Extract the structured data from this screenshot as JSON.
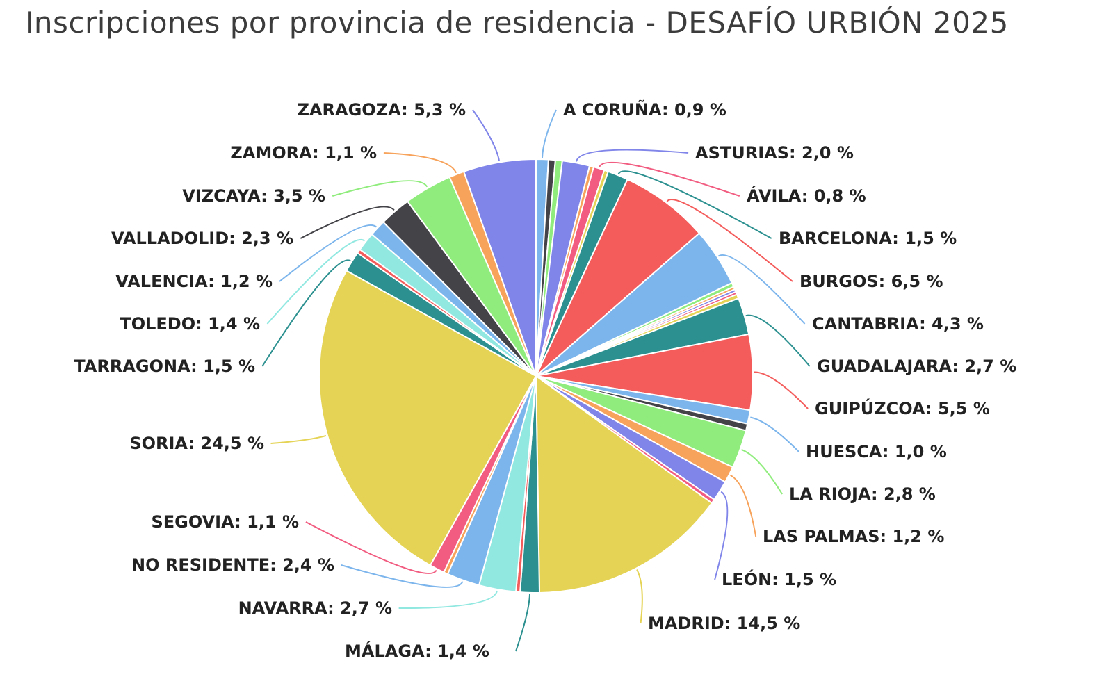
{
  "chart_data": {
    "type": "pie",
    "title": "Inscripciones por provincia de residencia - DESAFÍO URBIÓN 2025",
    "slices": [
      {
        "name": "A CORUÑA",
        "label": "A CORUÑA: 0,9 %",
        "value": 0.9,
        "color": "#7cb5ec"
      },
      {
        "name": "(sin etiqueta)",
        "label": "",
        "value": 0.5,
        "color": "#434348"
      },
      {
        "name": "(sin etiqueta)",
        "label": "",
        "value": 0.5,
        "color": "#90ed7d"
      },
      {
        "name": "ASTURIAS",
        "label": "ASTURIAS: 2,0 %",
        "value": 2.0,
        "color": "#8085e9"
      },
      {
        "name": "(sin etiqueta)",
        "label": "",
        "value": 0.3,
        "color": "#f7a35c"
      },
      {
        "name": "ÁVILA",
        "label": "ÁVILA: 0,8 %",
        "value": 0.8,
        "color": "#f15c80"
      },
      {
        "name": "(sin etiqueta)",
        "label": "",
        "value": 0.3,
        "color": "#e4d354"
      },
      {
        "name": "BARCELONA",
        "label": "BARCELONA: 1,5 %",
        "value": 1.5,
        "color": "#2b908f"
      },
      {
        "name": "BURGOS",
        "label": "BURGOS: 6,5 %",
        "value": 6.5,
        "color": "#f45b5b"
      },
      {
        "name": "CANTABRIA",
        "label": "CANTABRIA: 4,3 %",
        "value": 4.3,
        "color": "#7cb5ec"
      },
      {
        "name": "(sin etiqueta)",
        "label": "",
        "value": 0.3,
        "color": "#90ed7d"
      },
      {
        "name": "(sin etiqueta)",
        "label": "",
        "value": 0.2,
        "color": "#f7a35c"
      },
      {
        "name": "(sin etiqueta)",
        "label": "",
        "value": 0.2,
        "color": "#8085e9"
      },
      {
        "name": "(sin etiqueta)",
        "label": "",
        "value": 0.2,
        "color": "#f15c80"
      },
      {
        "name": "(sin etiqueta)",
        "label": "",
        "value": 0.3,
        "color": "#e4d354"
      },
      {
        "name": "GUADALAJARA",
        "label": "GUADALAJARA: 2,7 %",
        "value": 2.7,
        "color": "#2b908f"
      },
      {
        "name": "GUIPÚZCOA",
        "label": "GUIPÚZCOA: 5,5 %",
        "value": 5.5,
        "color": "#f45b5b"
      },
      {
        "name": "HUESCA",
        "label": "HUESCA: 1,0 %",
        "value": 1.0,
        "color": "#7cb5ec"
      },
      {
        "name": "(sin etiqueta)",
        "label": "",
        "value": 0.5,
        "color": "#434348"
      },
      {
        "name": "LA RIOJA",
        "label": "LA RIOJA: 2,8 %",
        "value": 2.8,
        "color": "#90ed7d"
      },
      {
        "name": "LAS PALMAS",
        "label": "LAS PALMAS: 1,2 %",
        "value": 1.2,
        "color": "#f7a35c"
      },
      {
        "name": "LEÓN",
        "label": "LEÓN: 1,5 %",
        "value": 1.5,
        "color": "#8085e9"
      },
      {
        "name": "(sin etiqueta)",
        "label": "",
        "value": 0.3,
        "color": "#f15c80"
      },
      {
        "name": "MADRID",
        "label": "MADRID: 14,5 %",
        "value": 14.5,
        "color": "#e4d354"
      },
      {
        "name": "MÁLAGA",
        "label": "MÁLAGA: 1,4 %",
        "value": 1.4,
        "color": "#2b908f"
      },
      {
        "name": "(sin etiqueta)",
        "label": "",
        "value": 0.3,
        "color": "#f45b5b"
      },
      {
        "name": "NAVARRA",
        "label": "NAVARRA: 2,7 %",
        "value": 2.7,
        "color": "#91e8e1"
      },
      {
        "name": "NO RESIDENTE",
        "label": "NO RESIDENTE: 2,4 %",
        "value": 2.4,
        "color": "#7cb5ec"
      },
      {
        "name": "(sin etiqueta)",
        "label": "",
        "value": 0.3,
        "color": "#f7a35c"
      },
      {
        "name": "SEGOVIA",
        "label": "SEGOVIA: 1,1 %",
        "value": 1.1,
        "color": "#f15c80"
      },
      {
        "name": "SORIA",
        "label": "SORIA: 24,5 %",
        "value": 24.5,
        "color": "#e4d354"
      },
      {
        "name": "TARRAGONA",
        "label": "TARRAGONA: 1,5 %",
        "value": 1.5,
        "color": "#2b908f"
      },
      {
        "name": "(sin etiqueta)",
        "label": "",
        "value": 0.3,
        "color": "#f45b5b"
      },
      {
        "name": "TOLEDO",
        "label": "TOLEDO: 1,4 %",
        "value": 1.4,
        "color": "#91e8e1"
      },
      {
        "name": "VALENCIA",
        "label": "VALENCIA: 1,2 %",
        "value": 1.2,
        "color": "#7cb5ec"
      },
      {
        "name": "VALLADOLID",
        "label": "VALLADOLID: 2,3 %",
        "value": 2.3,
        "color": "#434348"
      },
      {
        "name": "VIZCAYA",
        "label": "VIZCAYA: 3,5 %",
        "value": 3.5,
        "color": "#90ed7d"
      },
      {
        "name": "ZAMORA",
        "label": "ZAMORA: 1,1 %",
        "value": 1.1,
        "color": "#f7a35c"
      },
      {
        "name": "ZARAGOZA",
        "label": "ZARAGOZA: 5,3 %",
        "value": 5.3,
        "color": "#8085e9"
      }
    ]
  }
}
